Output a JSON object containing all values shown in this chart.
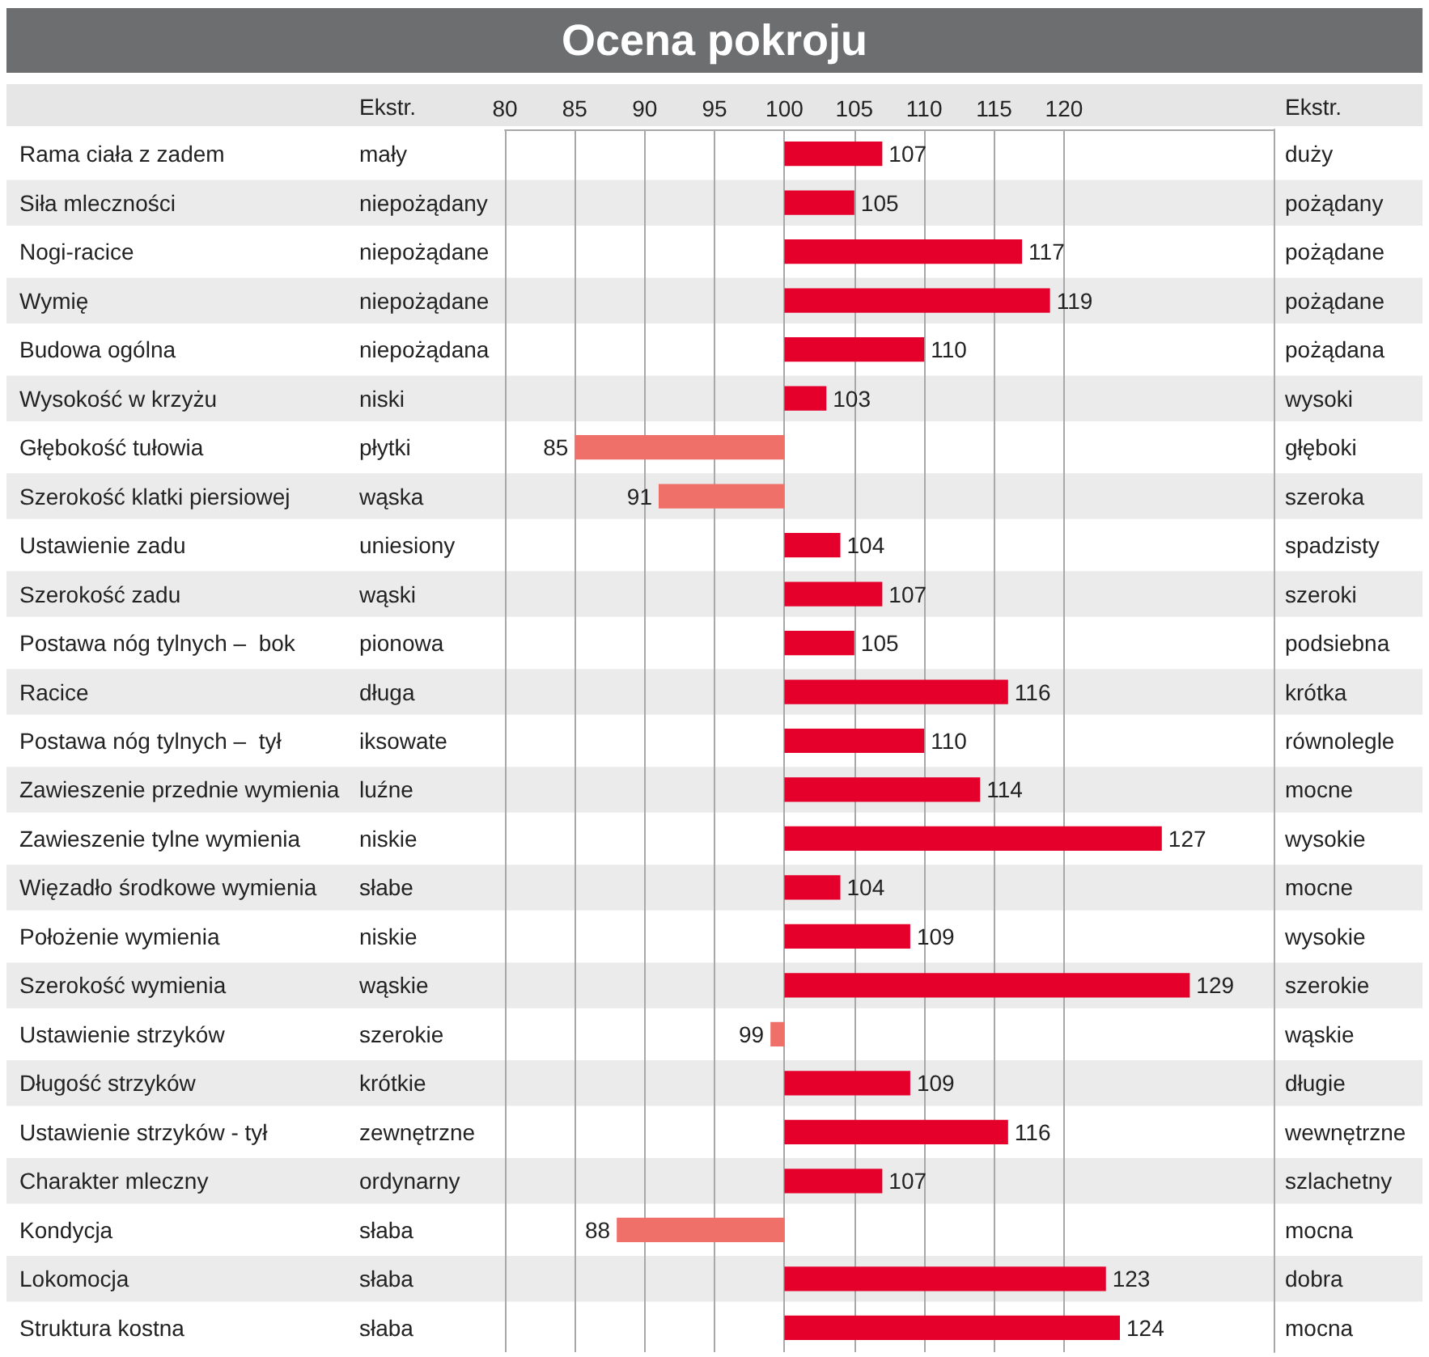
{
  "chart_data": {
    "type": "bar",
    "orientation": "horizontal",
    "title": "Ocena pokroju",
    "categories": [
      "Rama ciała z zadem",
      "Siła mleczności",
      "Nogi-racice",
      "Wymię",
      "Budowa ogólna",
      "Wysokość w krzyżu",
      "Głębokość tułowia",
      "Szerokość klatki piersiowej",
      "Ustawienie zadu",
      "Szerokość zadu",
      "Postawa nóg tylnych –  bok",
      "Racice",
      "Postawa nóg tylnych –  tył",
      "Zawieszenie przednie wymienia",
      "Zawieszenie tylne wymienia",
      "Więzadło środkowe wymienia",
      "Położenie wymienia",
      "Szerokość wymienia",
      "Ustawienie strzyków",
      "Długość strzyków",
      "Ustawienie strzyków - tył",
      "Charakter mleczny",
      "Kondycja",
      "Lokomocja",
      "Struktura kostna"
    ],
    "base": [
      100,
      100,
      100,
      100,
      100,
      100,
      100,
      100,
      100,
      100,
      100,
      100,
      100,
      100,
      100,
      100,
      100,
      100,
      100,
      100,
      100,
      100,
      100,
      100,
      100
    ],
    "values": [
      7,
      5,
      17,
      19,
      10,
      3,
      -15,
      -9,
      4,
      7,
      5,
      16,
      10,
      14,
      27,
      4,
      9,
      29,
      -1,
      9,
      16,
      7,
      -12,
      23,
      24
    ],
    "value_labels": [
      "107",
      "105",
      "117",
      "119",
      "110",
      "103",
      "85",
      "91",
      "104",
      "107",
      "105",
      "116",
      "110",
      "114",
      "127",
      "104",
      "109",
      "129",
      "99",
      "109",
      "116",
      "107",
      "88",
      "123",
      "124"
    ],
    "colors": [
      "#e4002b",
      "#e4002b",
      "#e4002b",
      "#e4002b",
      "#e4002b",
      "#e4002b",
      "#ef7068",
      "#ef7068",
      "#e4002b",
      "#e4002b",
      "#e4002b",
      "#e4002b",
      "#e4002b",
      "#e4002b",
      "#e4002b",
      "#e4002b",
      "#e4002b",
      "#e4002b",
      "#ef7068",
      "#e4002b",
      "#e4002b",
      "#e4002b",
      "#ef7068",
      "#e4002b",
      "#e4002b"
    ],
    "xlim": [
      80,
      135
    ],
    "xticks": [
      80,
      85,
      90,
      95,
      100,
      105,
      110,
      115,
      120
    ],
    "grid": "x",
    "annotations": [
      "Ekstr.",
      "Ekstr.",
      "mały",
      "niepożądany",
      "niepożądane",
      "niepożądane",
      "niepożądana",
      "niski",
      "płytki",
      "wąska",
      "uniesiony",
      "wąski",
      "pionowa",
      "długa",
      "iksowate",
      "luźne",
      "niskie",
      "słabe",
      "niskie",
      "wąskie",
      "szerokie",
      "krótkie",
      "zewnętrzne",
      "ordynarny",
      "słaba",
      "słaba",
      "słaba",
      "duży",
      "pożądany",
      "pożądane",
      "pożądane",
      "pożądana",
      "wysoki",
      "głęboki",
      "szeroka",
      "spadzisty",
      "szeroki",
      "podsiebna",
      "krótka",
      "równolegle",
      "mocne",
      "wysokie",
      "mocne",
      "wysokie",
      "szerokie",
      "wąskie",
      "długie",
      "wewnętrzne",
      "szlachetny",
      "mocna",
      "dobra",
      "mocna"
    ]
  }
}
